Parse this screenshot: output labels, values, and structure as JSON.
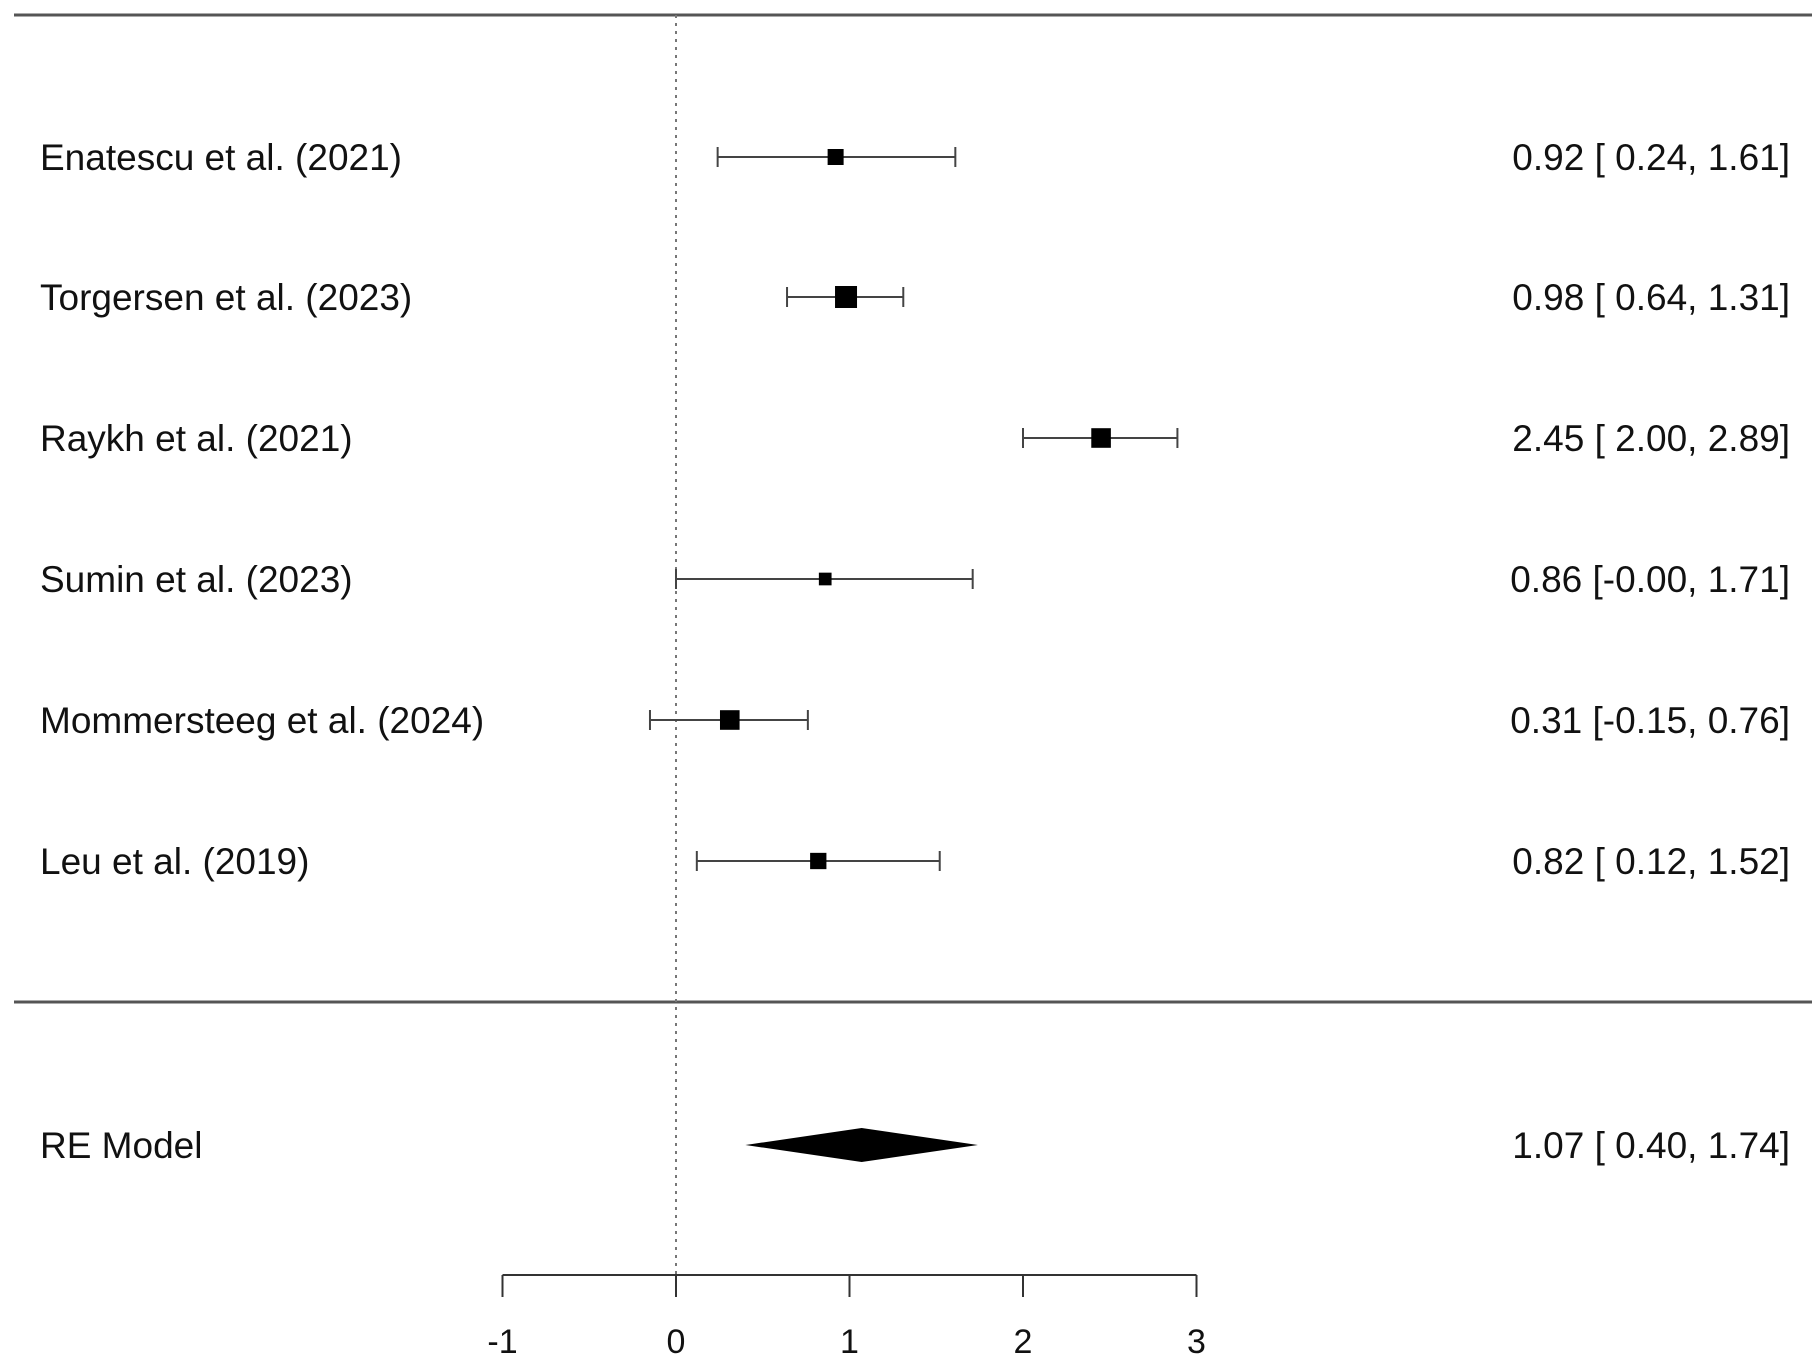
{
  "chart_data": {
    "type": "forest",
    "title": "",
    "xlabel": "",
    "xlim": [
      -1,
      3
    ],
    "x_ticks": [
      "-1",
      "0",
      "1",
      "2",
      "3"
    ],
    "reference_line": 0,
    "studies": [
      {
        "label": "Enatescu et al. (2021)",
        "estimate": 0.92,
        "ci_lower": 0.24,
        "ci_upper": 1.61,
        "weight": 1.0,
        "text": "0.92 [ 0.24, 1.61]"
      },
      {
        "label": "Torgersen et al. (2023)",
        "estimate": 0.98,
        "ci_lower": 0.64,
        "ci_upper": 1.31,
        "weight": 2.0,
        "text": "0.98 [ 0.64, 1.31]"
      },
      {
        "label": "Raykh et al. (2021)",
        "estimate": 2.45,
        "ci_lower": 2.0,
        "ci_upper": 2.89,
        "weight": 1.6,
        "text": "2.45 [ 2.00, 2.89]"
      },
      {
        "label": "Sumin et al. (2023)",
        "estimate": 0.86,
        "ci_lower": -0.0,
        "ci_upper": 1.71,
        "weight": 0.45,
        "text": "0.86 [-0.00, 1.71]"
      },
      {
        "label": "Mommersteeg et al. (2024)",
        "estimate": 0.31,
        "ci_lower": -0.15,
        "ci_upper": 0.76,
        "weight": 1.6,
        "text": "0.31 [-0.15, 0.76]"
      },
      {
        "label": "Leu et al. (2019)",
        "estimate": 0.82,
        "ci_lower": 0.12,
        "ci_upper": 1.52,
        "weight": 1.05,
        "text": "0.82 [ 0.12, 1.52]"
      }
    ],
    "summary": {
      "label": "RE Model",
      "estimate": 1.07,
      "ci_lower": 0.4,
      "ci_upper": 1.74,
      "text": "1.07 [ 0.40, 1.74]"
    }
  }
}
